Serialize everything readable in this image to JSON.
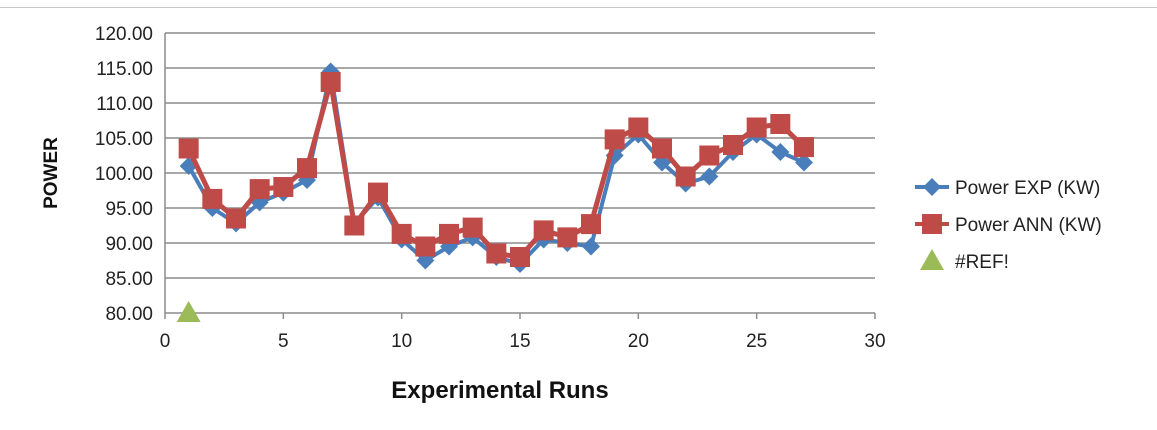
{
  "chart_data": {
    "type": "line",
    "title": "",
    "xlabel": "Experimental Runs",
    "ylabel": "POWER",
    "xlim": [
      0,
      30
    ],
    "ylim": [
      80,
      120
    ],
    "x_ticks": [
      "0",
      "5",
      "10",
      "15",
      "20",
      "25",
      "30"
    ],
    "y_ticks": [
      "80.00",
      "85.00",
      "90.00",
      "95.00",
      "100.00",
      "105.00",
      "110.00",
      "115.00",
      "120.00"
    ],
    "grid": "horizontal",
    "legend_position": "right",
    "series": [
      {
        "name": "Power EXP (KW)",
        "color": "#4a7ebb",
        "marker": "diamond",
        "x": [
          1,
          2,
          3,
          4,
          5,
          6,
          7,
          8,
          9,
          10,
          11,
          12,
          13,
          14,
          15,
          16,
          17,
          18,
          19,
          20,
          21,
          22,
          23,
          24,
          25,
          26,
          27
        ],
        "y": [
          101.0,
          95.0,
          92.8,
          95.8,
          97.2,
          99.0,
          114.5,
          92.8,
          96.5,
          90.5,
          87.5,
          89.5,
          90.8,
          88.0,
          87.0,
          90.5,
          90.0,
          89.5,
          102.5,
          105.5,
          101.5,
          98.5,
          99.5,
          103.0,
          105.5,
          103.0,
          101.5
        ]
      },
      {
        "name": "Power ANN (KW)",
        "color": "#be4b48",
        "marker": "square",
        "x": [
          1,
          2,
          3,
          4,
          5,
          6,
          7,
          8,
          9,
          10,
          11,
          12,
          13,
          14,
          15,
          16,
          17,
          18,
          19,
          20,
          21,
          22,
          23,
          24,
          25,
          26,
          27
        ],
        "y": [
          103.5,
          96.3,
          93.5,
          97.7,
          98.0,
          100.7,
          113.0,
          92.5,
          97.2,
          91.3,
          89.5,
          91.3,
          92.2,
          88.5,
          88.0,
          91.8,
          90.8,
          92.7,
          104.8,
          106.5,
          103.5,
          99.5,
          102.5,
          104.0,
          106.5,
          107.0,
          103.7
        ]
      },
      {
        "name": "#REF!",
        "color": "#9bbb59",
        "marker": "triangle",
        "x": [
          1
        ],
        "y": [
          80.0
        ]
      }
    ]
  }
}
